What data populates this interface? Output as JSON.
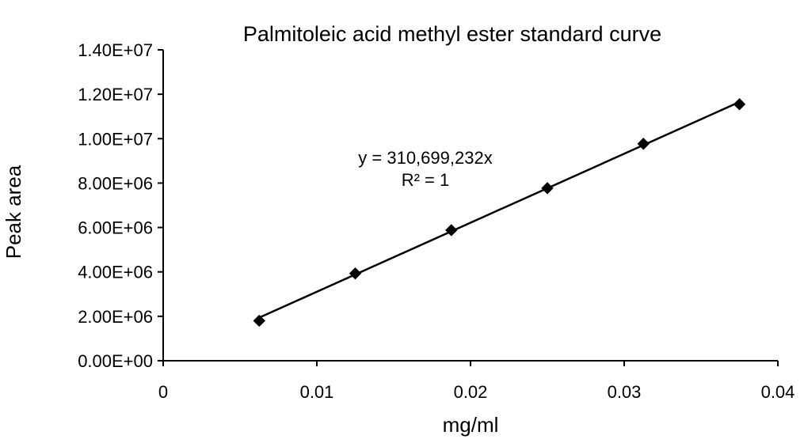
{
  "chart_data": {
    "type": "scatter",
    "title": "Palmitoleic acid methyl ester standard curve",
    "xlabel": "mg/ml",
    "ylabel": "Peak area",
    "xlim": [
      0,
      0.04
    ],
    "ylim": [
      0,
      14000000
    ],
    "x_ticks": [
      0,
      0.01,
      0.02,
      0.03,
      0.04
    ],
    "x_tick_labels": [
      "0",
      "0.01",
      "0.02",
      "0.03",
      "0.04"
    ],
    "y_ticks": [
      0,
      2000000,
      4000000,
      6000000,
      8000000,
      10000000,
      12000000,
      14000000
    ],
    "y_tick_labels": [
      "0.00E+00",
      "2.00E+06",
      "4.00E+06",
      "6.00E+06",
      "8.00E+06",
      "1.00E+07",
      "1.20E+07",
      "1.40E+07"
    ],
    "grid": false,
    "series": [
      {
        "x": [
          0.00625,
          0.0125,
          0.01875,
          0.025,
          0.03125,
          0.0375
        ],
        "y": [
          1800000,
          3930000,
          5880000,
          7770000,
          9770000,
          11550000
        ],
        "marker": "diamond",
        "color": "#000000"
      }
    ],
    "trendline": {
      "type": "linear-through-origin",
      "slope": 310699232,
      "color": "#000000"
    },
    "annotations": {
      "equation": "y = 310,699,232x",
      "r_squared": "R² = 1"
    }
  }
}
